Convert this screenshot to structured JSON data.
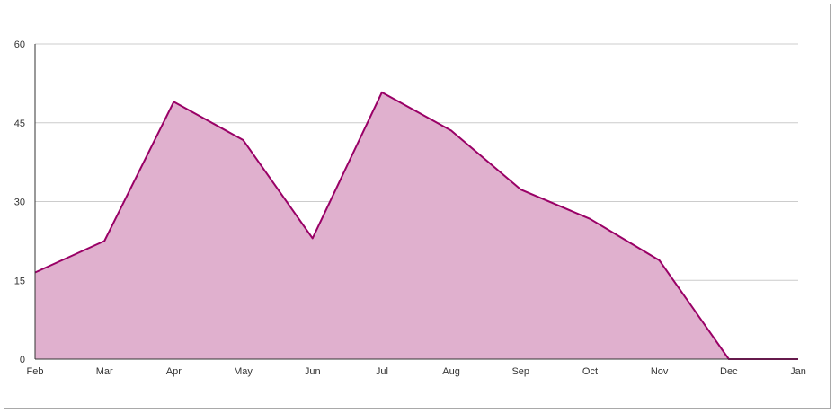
{
  "chart_data": {
    "type": "area",
    "title": "",
    "xlabel": "",
    "ylabel": "",
    "categories": [
      "Feb",
      "Mar",
      "Apr",
      "May",
      "Jun",
      "Jul",
      "Aug",
      "Sep",
      "Oct",
      "Nov",
      "Dec",
      "Jan"
    ],
    "values": [
      16.5,
      22.5,
      49.0,
      41.7,
      23.0,
      50.8,
      43.5,
      32.3,
      26.7,
      18.8,
      0,
      0
    ],
    "ylim": [
      0,
      60
    ],
    "yticks": [
      "0",
      "15",
      "30",
      "45",
      "60"
    ],
    "grid": true,
    "legend": "none",
    "colors": {
      "line": "#990066",
      "fill": "#e0b0ce",
      "grid": "#cccccc",
      "axis": "#333333"
    }
  }
}
